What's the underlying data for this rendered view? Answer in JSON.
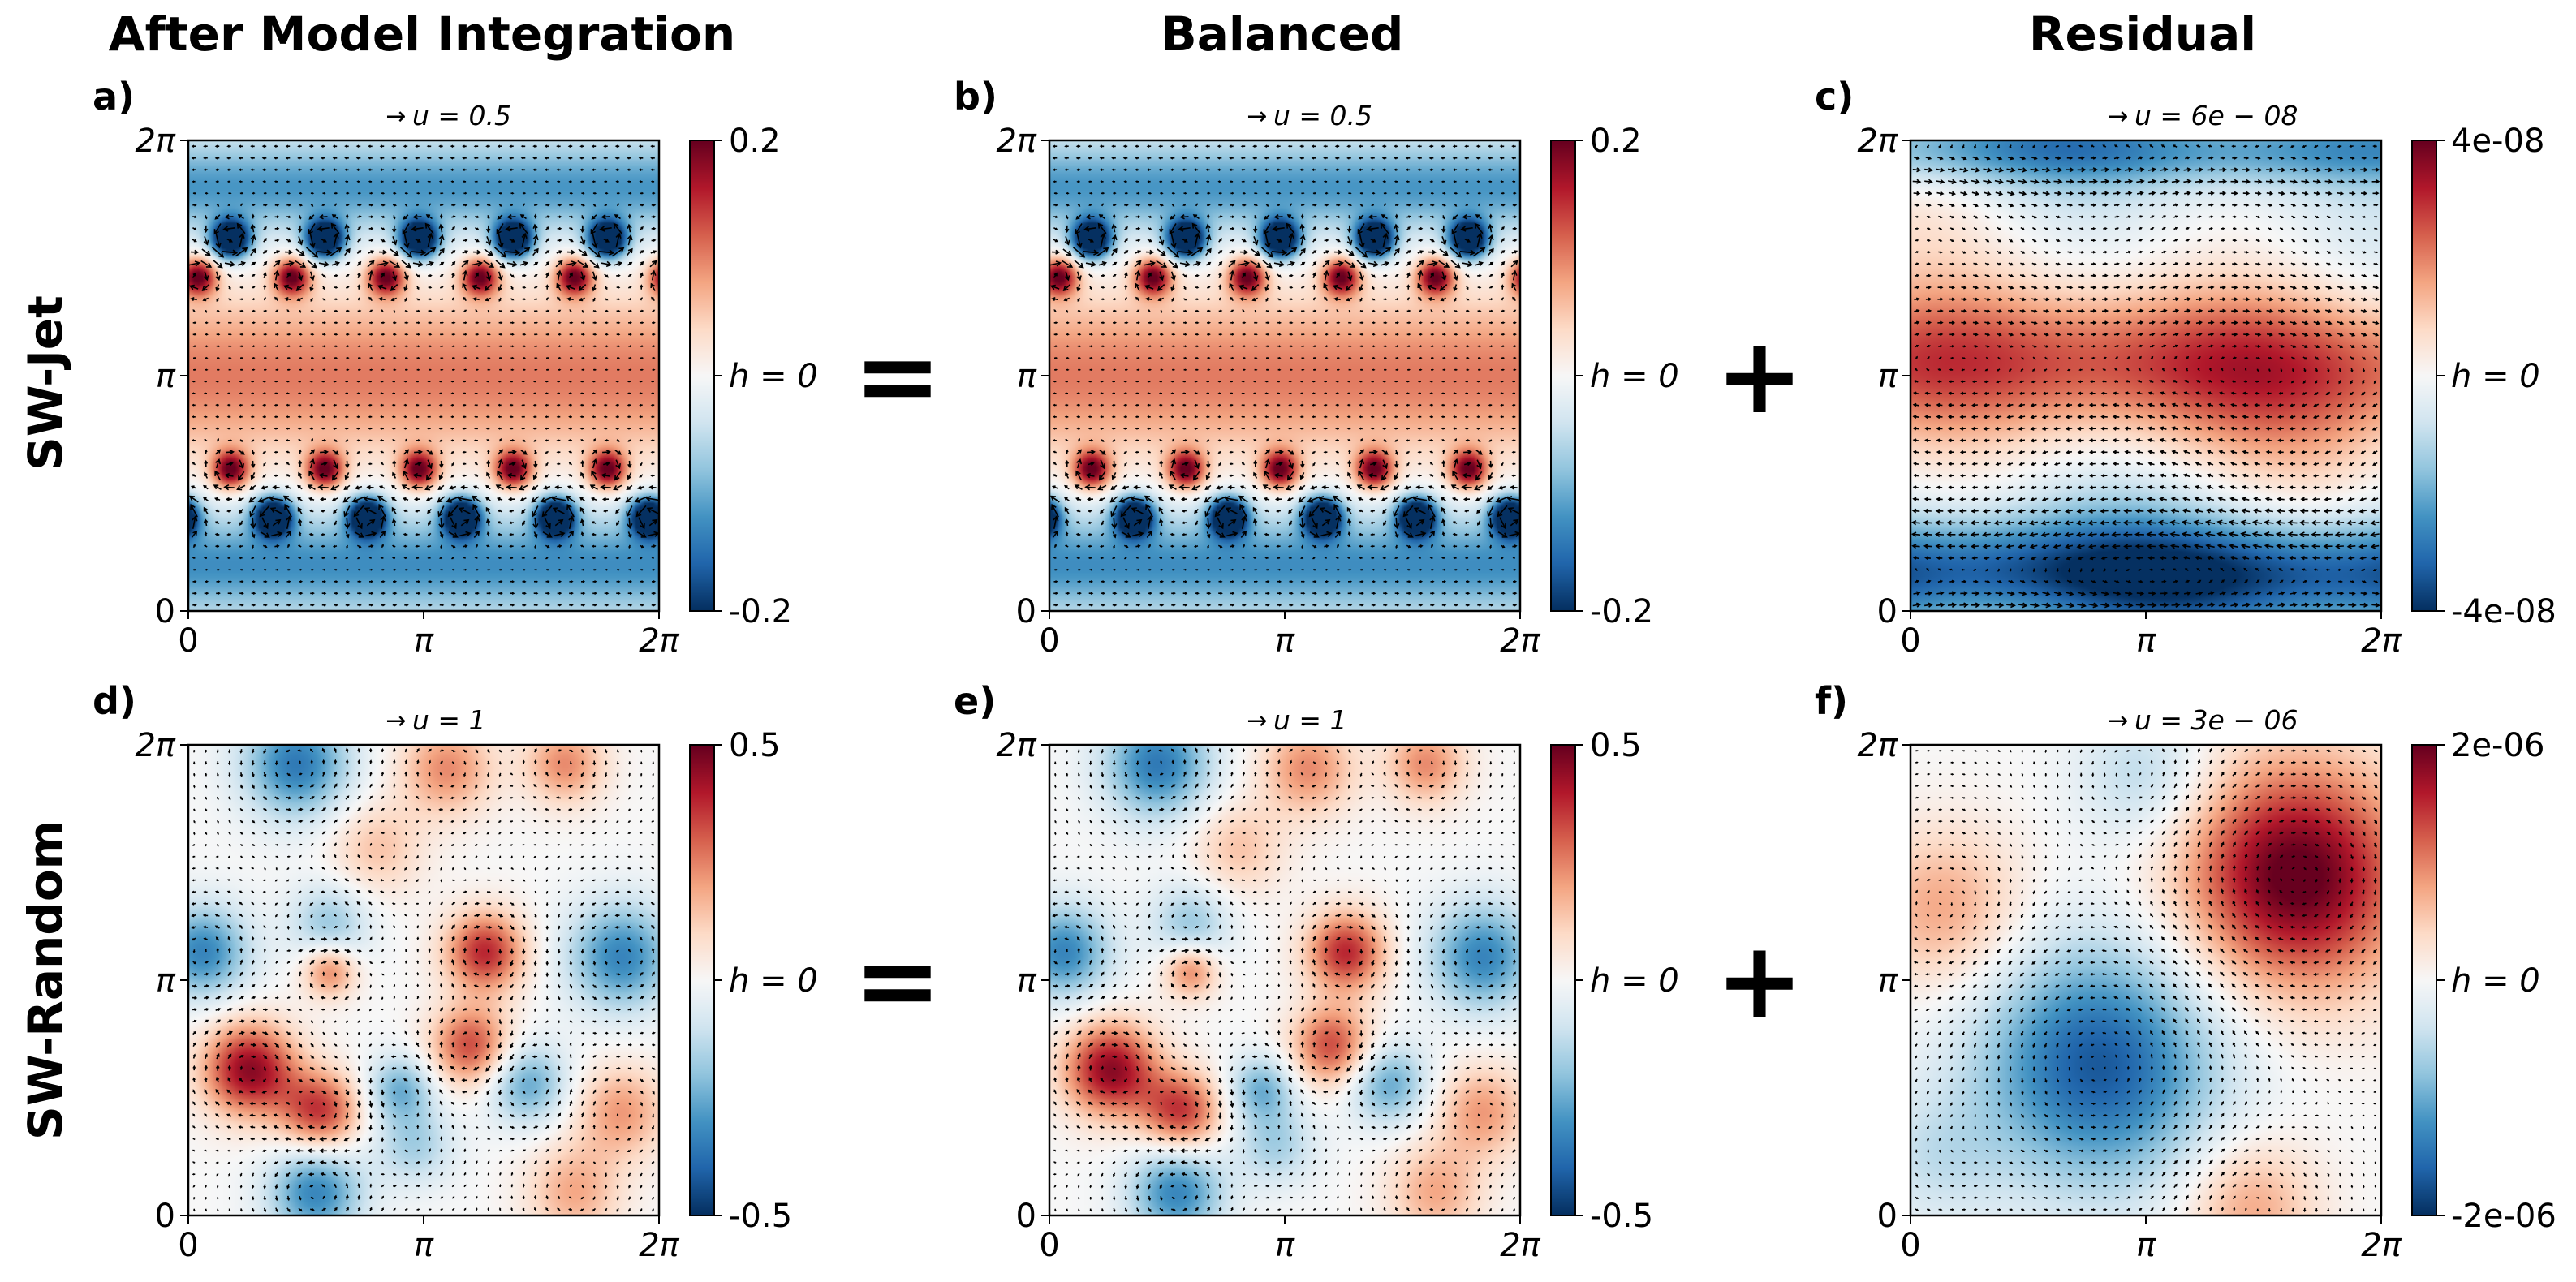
{
  "column_titles": [
    "After Model Integration",
    "Balanced",
    "Residual"
  ],
  "row_titles": [
    "SW-Jet",
    "SW-Random"
  ],
  "operators": {
    "equals": "=",
    "plus": "+"
  },
  "colormap": {
    "name": "RdBu_r",
    "low": "#053061",
    "mid": "#f7f7f7",
    "high": "#67001f"
  },
  "chart_data": [
    {
      "type": "heatmap",
      "panel": "a)",
      "row": "SW-Jet",
      "column": "After Model Integration",
      "field": "jet",
      "quiver_label": "u = 0.5",
      "x_ticks": [
        "0",
        "π",
        "2π"
      ],
      "y_ticks": [
        "0",
        "π",
        "2π"
      ],
      "colorbar": {
        "ticks": [
          "0.2",
          "h = 0",
          "-0.2"
        ],
        "range": [
          -0.2,
          0.2
        ]
      }
    },
    {
      "type": "heatmap",
      "panel": "b)",
      "row": "SW-Jet",
      "column": "Balanced",
      "field": "jet",
      "quiver_label": "u = 0.5",
      "x_ticks": [
        "0",
        "π",
        "2π"
      ],
      "y_ticks": [
        "0",
        "π",
        "2π"
      ],
      "colorbar": {
        "ticks": [
          "0.2",
          "h = 0",
          "-0.2"
        ],
        "range": [
          -0.2,
          0.2
        ]
      }
    },
    {
      "type": "heatmap",
      "panel": "c)",
      "row": "SW-Jet",
      "column": "Residual",
      "field": "jet_residual",
      "quiver_label": "u = 6e − 08",
      "x_ticks": [
        "0",
        "π",
        "2π"
      ],
      "y_ticks": [
        "0",
        "π",
        "2π"
      ],
      "colorbar": {
        "ticks": [
          "4e-08",
          "h = 0",
          "-4e-08"
        ],
        "range": [
          -4e-08,
          4e-08
        ]
      }
    },
    {
      "type": "heatmap",
      "panel": "d)",
      "row": "SW-Random",
      "column": "After Model Integration",
      "field": "random",
      "quiver_label": "u = 1",
      "x_ticks": [
        "0",
        "π",
        "2π"
      ],
      "y_ticks": [
        "0",
        "π",
        "2π"
      ],
      "colorbar": {
        "ticks": [
          "0.5",
          "h = 0",
          "-0.5"
        ],
        "range": [
          -0.5,
          0.5
        ]
      }
    },
    {
      "type": "heatmap",
      "panel": "e)",
      "row": "SW-Random",
      "column": "Balanced",
      "field": "random",
      "quiver_label": "u = 1",
      "x_ticks": [
        "0",
        "π",
        "2π"
      ],
      "y_ticks": [
        "0",
        "π",
        "2π"
      ],
      "colorbar": {
        "ticks": [
          "0.5",
          "h = 0",
          "-0.5"
        ],
        "range": [
          -0.5,
          0.5
        ]
      }
    },
    {
      "type": "heatmap",
      "panel": "f)",
      "row": "SW-Random",
      "column": "Residual",
      "field": "random_residual",
      "quiver_label": "u = 3e − 06",
      "x_ticks": [
        "0",
        "π",
        "2π"
      ],
      "y_ticks": [
        "0",
        "π",
        "2π"
      ],
      "colorbar": {
        "ticks": [
          "2e-06",
          "h = 0",
          "-2e-06"
        ],
        "range": [
          -2e-06,
          2e-06
        ]
      }
    }
  ]
}
